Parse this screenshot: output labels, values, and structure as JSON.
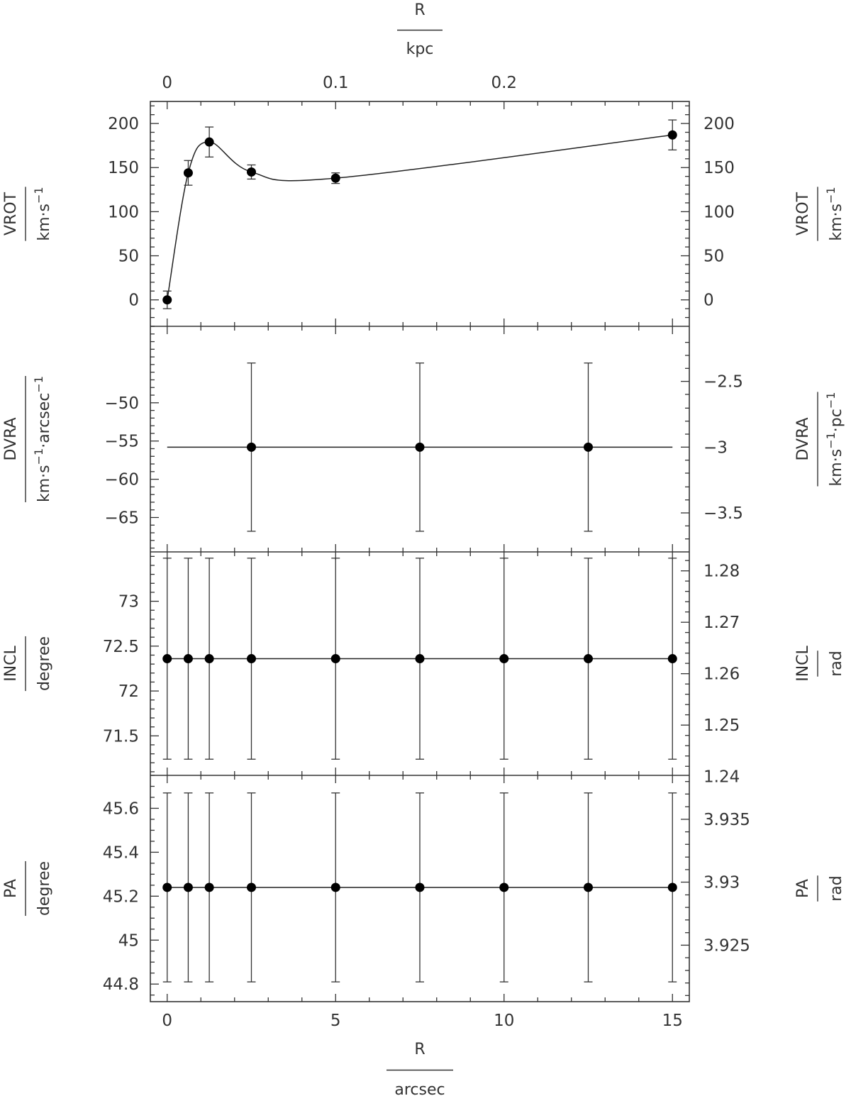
{
  "chart_data": {
    "type": "scatter",
    "x": {
      "label": "R",
      "unit": "arcsec",
      "lim": [
        -0.5,
        15.5
      ],
      "ticks": [
        0,
        5,
        10,
        15
      ],
      "tick_labels": [
        "0",
        "5",
        "10",
        "15"
      ],
      "minor_step": 1
    },
    "x_top": {
      "label": "R",
      "unit": "kpc",
      "ticks": [
        0,
        5,
        10
      ],
      "tick_labels": [
        "0",
        "0.1",
        "0.2"
      ],
      "minor_step": 1
    },
    "panels": [
      {
        "id": "vrot",
        "label": "VROT",
        "unit_parts": [
          {
            "t": "km·s"
          },
          {
            "t": "−1",
            "sup": true
          }
        ],
        "ylim": [
          -30,
          225
        ],
        "y_ticks": [
          0,
          50,
          100,
          150,
          200
        ],
        "y_tick_labels": [
          "0",
          "50",
          "100",
          "150",
          "200"
        ],
        "y_minor_step": 10,
        "right_label": "VROT",
        "right_unit_parts": [
          {
            "t": "km·s"
          },
          {
            "t": "−1",
            "sup": true
          }
        ],
        "right_ticks": [
          0,
          50,
          100,
          150,
          200
        ],
        "right_tick_labels": [
          "0",
          "50",
          "100",
          "150",
          "200"
        ],
        "right_minor": [
          10,
          20,
          30,
          40,
          60,
          70,
          80,
          90,
          110,
          120,
          130,
          140,
          160,
          170,
          180,
          190,
          210,
          220,
          -10,
          -20
        ],
        "points": [
          {
            "x": 0,
            "y": 0,
            "err": 10
          },
          {
            "x": 0.625,
            "y": 144,
            "err": 14
          },
          {
            "x": 1.25,
            "y": 179,
            "err": 17
          },
          {
            "x": 2.5,
            "y": 145,
            "err": 8
          },
          {
            "x": 5,
            "y": 138,
            "err": 6
          },
          {
            "x": 15,
            "y": 187,
            "err": 17
          }
        ],
        "curve": "spline"
      },
      {
        "id": "dvra",
        "label": "DVRA",
        "unit_parts": [
          {
            "t": "km·s"
          },
          {
            "t": "−1",
            "sup": true
          },
          {
            "t": "·arcsec"
          },
          {
            "t": "−1",
            "sup": true
          }
        ],
        "ylim": [
          -69.5,
          -40
        ],
        "y_ticks": [
          -65,
          -60,
          -55,
          -50
        ],
        "y_tick_labels": [
          "−65",
          "−60",
          "−55",
          "−50"
        ],
        "y_minor_step": 1,
        "right_label": "DVRA",
        "right_unit_parts": [
          {
            "t": "km·s"
          },
          {
            "t": "−1",
            "sup": true
          },
          {
            "t": "·pc"
          },
          {
            "t": "−1",
            "sup": true
          }
        ],
        "right_ticks": [
          -64.4,
          -55.8,
          -47.2
        ],
        "right_tick_labels": [
          "−3.5",
          "−3",
          "−2.5"
        ],
        "right_minor": [
          -67.8,
          -66.1,
          -62.7,
          -61.0,
          -59.2,
          -57.5,
          -54.1,
          -52.4,
          -50.7,
          -48.9,
          -45.5,
          -43.8,
          -42.1
        ],
        "points": [
          {
            "x": 2.5,
            "y": -55.8,
            "err": 11
          },
          {
            "x": 7.5,
            "y": -55.8,
            "err": 11
          },
          {
            "x": 12.5,
            "y": -55.8,
            "err": 11
          }
        ],
        "line": {
          "x0": 0,
          "x1": 15,
          "y": -55.8
        }
      },
      {
        "id": "incl",
        "label": "INCL",
        "unit_parts": [
          {
            "t": "degree"
          }
        ],
        "ylim": [
          71.06,
          73.55
        ],
        "y_ticks": [
          71.5,
          72,
          72.5,
          73
        ],
        "y_tick_labels": [
          "71.5",
          "72",
          "72.5",
          "73"
        ],
        "y_minor_step": 0.1,
        "right_label": "INCL",
        "right_unit_parts": [
          {
            "t": "rad"
          }
        ],
        "right_ticks": [
          71.047,
          71.62,
          72.193,
          72.766,
          73.339
        ],
        "right_tick_labels": [
          "1.24",
          "1.25",
          "1.26",
          "1.27",
          "1.28"
        ],
        "right_minor": [
          71.161,
          71.276,
          71.391,
          71.505,
          71.735,
          71.849,
          71.964,
          72.078,
          72.308,
          72.422,
          72.537,
          72.652,
          72.881,
          72.995,
          73.11,
          73.225,
          73.454
        ],
        "points": [
          {
            "x": 0,
            "y": 72.36,
            "err": 1.12
          },
          {
            "x": 0.625,
            "y": 72.36,
            "err": 1.12
          },
          {
            "x": 1.25,
            "y": 72.36,
            "err": 1.12
          },
          {
            "x": 2.5,
            "y": 72.36,
            "err": 1.12
          },
          {
            "x": 5,
            "y": 72.36,
            "err": 1.12
          },
          {
            "x": 7.5,
            "y": 72.36,
            "err": 1.12
          },
          {
            "x": 10,
            "y": 72.36,
            "err": 1.12
          },
          {
            "x": 12.5,
            "y": 72.36,
            "err": 1.12
          },
          {
            "x": 15,
            "y": 72.36,
            "err": 1.12
          }
        ],
        "line": {
          "x0": 0,
          "x1": 15,
          "y": 72.36
        }
      },
      {
        "id": "pa",
        "label": "PA",
        "unit_parts": [
          {
            "t": "degree"
          }
        ],
        "ylim": [
          44.72,
          45.75
        ],
        "y_ticks": [
          44.8,
          45,
          45.2,
          45.4,
          45.6
        ],
        "y_tick_labels": [
          "44.8",
          "45",
          "45.2",
          "45.4",
          "45.6"
        ],
        "y_minor_step": 0.05,
        "right_label": "PA",
        "right_unit_parts": [
          {
            "t": "rad"
          }
        ],
        "right_ticks": [
          44.977,
          45.264,
          45.55
        ],
        "right_tick_labels": [
          "3.925",
          "3.93",
          "3.935"
        ],
        "right_minor": [
          44.748,
          44.805,
          44.862,
          44.92,
          45.034,
          45.092,
          45.149,
          45.206,
          45.321,
          45.378,
          45.436,
          45.493,
          45.607,
          45.665,
          45.722
        ],
        "points": [
          {
            "x": 0,
            "y": 45.24,
            "err": 0.43
          },
          {
            "x": 0.625,
            "y": 45.24,
            "err": 0.43
          },
          {
            "x": 1.25,
            "y": 45.24,
            "err": 0.43
          },
          {
            "x": 2.5,
            "y": 45.24,
            "err": 0.43
          },
          {
            "x": 5,
            "y": 45.24,
            "err": 0.43
          },
          {
            "x": 7.5,
            "y": 45.24,
            "err": 0.43
          },
          {
            "x": 10,
            "y": 45.24,
            "err": 0.43
          },
          {
            "x": 12.5,
            "y": 45.24,
            "err": 0.43
          },
          {
            "x": 15,
            "y": 45.24,
            "err": 0.43
          }
        ],
        "line": {
          "x0": 0,
          "x1": 15,
          "y": 45.24
        }
      }
    ]
  }
}
